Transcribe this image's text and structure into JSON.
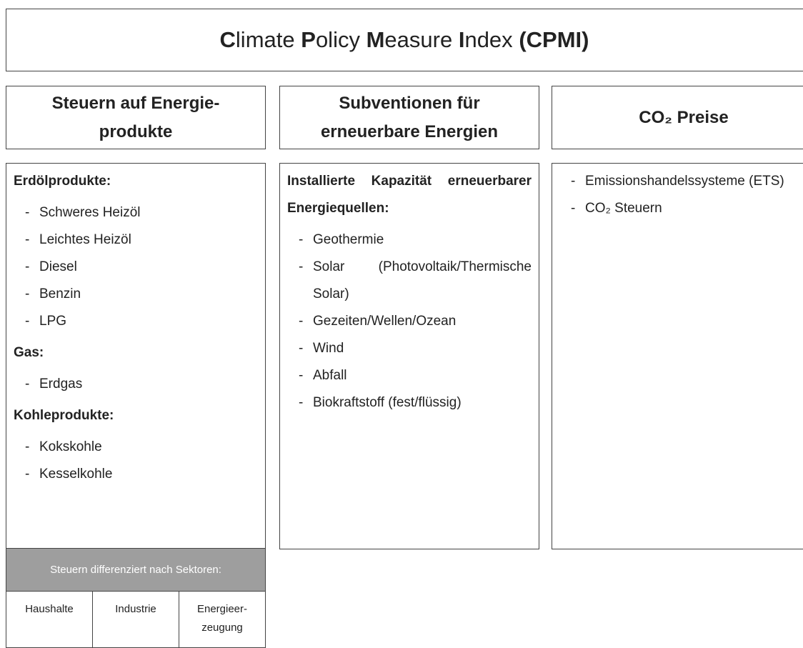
{
  "title": "Climate Policy Measure Index (CPMI)",
  "columns": [
    {
      "header": [
        "Steuern auf Energie-",
        "produkte"
      ],
      "sections": [
        {
          "label": "Erdölprodukte:",
          "items": [
            "Schweres Heizöl",
            "Leichtes Heizöl",
            "Diesel",
            "Benzin",
            "LPG"
          ]
        },
        {
          "label": "Gas:",
          "items": [
            "Erdgas"
          ]
        },
        {
          "label": "Kohleprodukte:",
          "items": [
            "Kokskohle",
            "Kesselkohle"
          ]
        }
      ]
    },
    {
      "header": [
        "Subventionen für",
        "erneuerbare Energien"
      ],
      "sections": [
        {
          "label": "Installierte Kapazität erneuerbarer Energiequellen:",
          "items": [
            "Geothermie",
            "Solar (Photovoltaik/Thermische Solar)",
            "Gezeiten/Wellen/Ozean",
            "Wind",
            "Abfall",
            "Biokraftstoff (fest/flüssig)"
          ]
        }
      ]
    },
    {
      "header": [
        "CO₂ Preise"
      ],
      "sections": [
        {
          "items": [
            "Emissionshandelssysteme (ETS)",
            "CO₂ Steuern"
          ]
        }
      ]
    }
  ],
  "sector_table": {
    "title": "Steuern differenziert nach Sektoren:",
    "cells": [
      [
        "Haushalte"
      ],
      [
        "Industrie"
      ],
      [
        "Energieer-",
        "zeugung"
      ]
    ]
  }
}
